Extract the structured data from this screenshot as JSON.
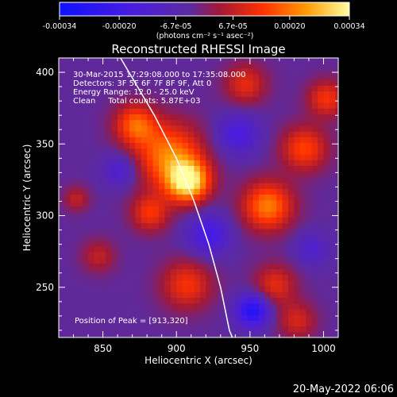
{
  "chart_data": {
    "type": "heatmap",
    "title": "Reconstructed RHESSI Image",
    "xlabel": "Heliocentric X (arcsec)",
    "ylabel": "Heliocentric Y (arcsec)",
    "xlim": [
      820,
      1010
    ],
    "ylim": [
      215,
      410
    ],
    "x_ticks": [
      850,
      900,
      950,
      1000
    ],
    "y_ticks": [
      250,
      300,
      350,
      400
    ],
    "colorbar": {
      "ticks": [
        "-0.00034",
        "-0.00020",
        "-6.7e-05",
        "6.7e-05",
        "0.00020",
        "0.00034"
      ],
      "tick_values": [
        -0.00034,
        -0.0002,
        -6.7e-05,
        6.7e-05,
        0.0002,
        0.00034
      ],
      "range": [
        -0.00034,
        0.00034
      ],
      "unit_label": "(photons cm⁻² s⁻¹ asec⁻²)"
    },
    "annotations": [
      "30-Mar-2015 17:29:08.000 to 17:35:08.000",
      "Detectors: 3F 5F 6F 7F 8F 9F, Att 0",
      "Energy Range: 12.0 - 25.0 keV",
      "Clean     Total counts: 5.87E+03"
    ],
    "peak_label": "Position of Peak = [913,320]",
    "peak_position": [
      913,
      320
    ],
    "limb_curve": [
      [
        862,
        410
      ],
      [
        885,
        370
      ],
      [
        900,
        340
      ],
      [
        912,
        310
      ],
      [
        922,
        280
      ],
      [
        930,
        250
      ],
      [
        936,
        220
      ],
      [
        938,
        215
      ]
    ],
    "sources": [
      {
        "x": 906,
        "y": 322,
        "value": 0.00034,
        "spread": 10
      },
      {
        "x": 893,
        "y": 340,
        "value": 0.00024,
        "spread": 16
      },
      {
        "x": 870,
        "y": 362,
        "value": 0.0002,
        "spread": 10
      },
      {
        "x": 880,
        "y": 300,
        "value": 0.00016,
        "spread": 9
      },
      {
        "x": 960,
        "y": 305,
        "value": 0.00024,
        "spread": 12
      },
      {
        "x": 985,
        "y": 345,
        "value": 0.00018,
        "spread": 11
      },
      {
        "x": 1000,
        "y": 380,
        "value": 0.00016,
        "spread": 9
      },
      {
        "x": 945,
        "y": 390,
        "value": 0.00014,
        "spread": 10
      },
      {
        "x": 905,
        "y": 250,
        "value": 0.00016,
        "spread": 12
      },
      {
        "x": 965,
        "y": 250,
        "value": 0.00014,
        "spread": 10
      },
      {
        "x": 980,
        "y": 225,
        "value": 0.00012,
        "spread": 9
      },
      {
        "x": 845,
        "y": 270,
        "value": 0.0001,
        "spread": 8
      },
      {
        "x": 830,
        "y": 310,
        "value": 0.0001,
        "spread": 6
      },
      {
        "x": 950,
        "y": 232,
        "value": -0.00026,
        "spread": 8
      },
      {
        "x": 920,
        "y": 285,
        "value": -0.00016,
        "spread": 10
      },
      {
        "x": 940,
        "y": 355,
        "value": -0.00014,
        "spread": 10
      },
      {
        "x": 860,
        "y": 330,
        "value": -0.00012,
        "spread": 8
      },
      {
        "x": 990,
        "y": 275,
        "value": -0.0001,
        "spread": 8
      }
    ]
  },
  "footer": {
    "date": "20-May-2022 06:06"
  }
}
